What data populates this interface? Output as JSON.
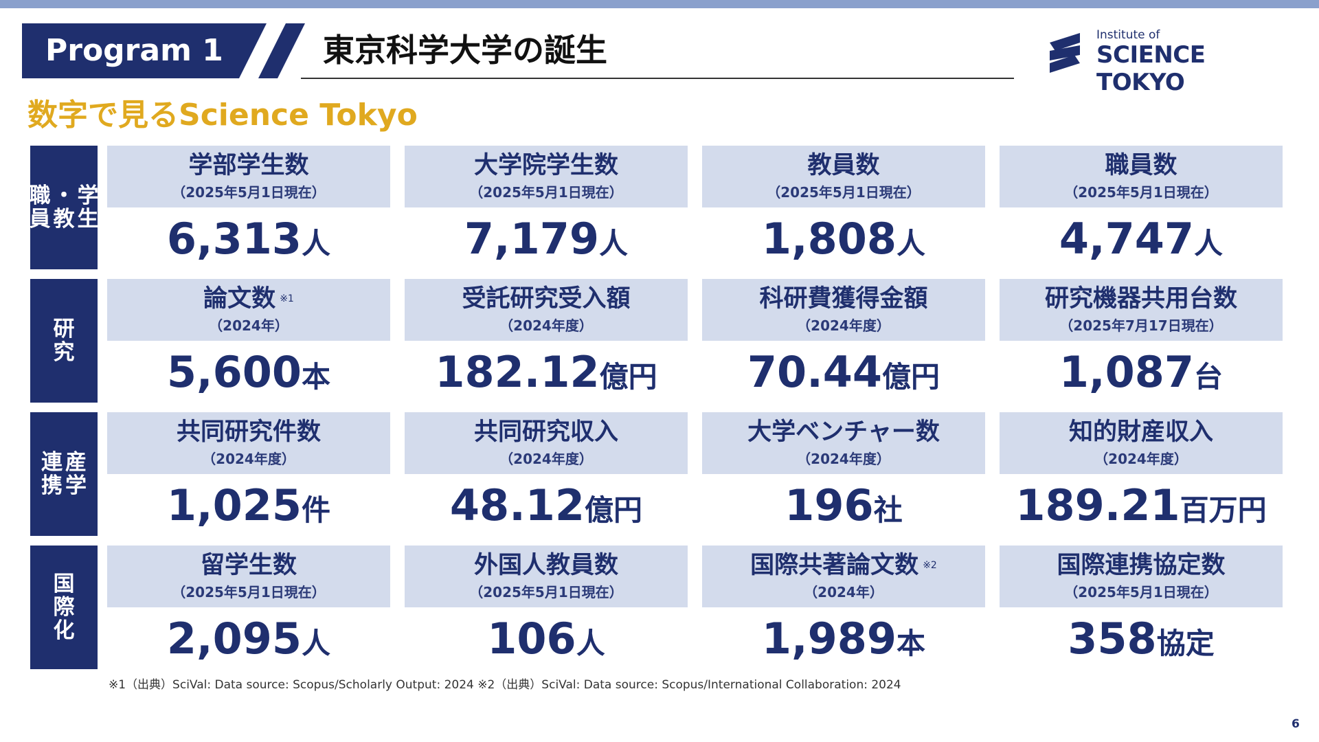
{
  "header": {
    "program_label": "Program 1",
    "title": "東京科学大学の誕生",
    "logo_small": "Institute of",
    "logo_big": "SCIENCE TOKYO"
  },
  "subtitle": "数字で見るScience Tokyo",
  "colors": {
    "navy": "#1f2f6e",
    "gold": "#e0a91f",
    "cell_header_bg": "#d3dbec",
    "top_stripe": "#8aa0cc"
  },
  "rows": [
    {
      "category": "学生・教職員",
      "cells": [
        {
          "title": "学部学生数",
          "date": "（2025年5月1日現在）",
          "number": "6,313",
          "unit": "人"
        },
        {
          "title": "大学院学生数",
          "date": "（2025年5月1日現在）",
          "number": "7,179",
          "unit": "人"
        },
        {
          "title": "教員数",
          "date": "（2025年5月1日現在）",
          "number": "1,808",
          "unit": "人"
        },
        {
          "title": "職員数",
          "date": "（2025年5月1日現在）",
          "number": "4,747",
          "unit": "人"
        }
      ]
    },
    {
      "category": "研究",
      "cells": [
        {
          "title": "論文数",
          "note": "※1",
          "date": "（2024年）",
          "number": "5,600",
          "unit": "本"
        },
        {
          "title": "受託研究受入額",
          "date": "（2024年度）",
          "number": "182.12",
          "unit": "億円"
        },
        {
          "title": "科研費獲得金額",
          "date": "（2024年度）",
          "number": "70.44",
          "unit": "億円"
        },
        {
          "title": "研究機器共用台数",
          "date": "（2025年7月17日現在）",
          "number": "1,087",
          "unit": "台"
        }
      ]
    },
    {
      "category": "産学連携",
      "cells": [
        {
          "title": "共同研究件数",
          "date": "（2024年度）",
          "number": "1,025",
          "unit": "件"
        },
        {
          "title": "共同研究収入",
          "date": "（2024年度）",
          "number": "48.12",
          "unit": "億円"
        },
        {
          "title": "大学ベンチャー数",
          "date": "（2024年度）",
          "number": "196",
          "unit": "社"
        },
        {
          "title": "知的財産収入",
          "date": "（2024年度）",
          "number": "189.21",
          "unit": "百万円"
        }
      ]
    },
    {
      "category": "国際化",
      "cells": [
        {
          "title": "留学生数",
          "date": "（2025年5月1日現在）",
          "number": "2,095",
          "unit": "人"
        },
        {
          "title": "外国人教員数",
          "date": "（2025年5月1日現在）",
          "number": "106",
          "unit": "人"
        },
        {
          "title": "国際共著論文数",
          "note": "※2",
          "date": "（2024年）",
          "number": "1,989",
          "unit": "本"
        },
        {
          "title": "国際連携協定数",
          "date": "（2025年5月1日現在）",
          "number": "358",
          "unit": "協定"
        }
      ]
    }
  ],
  "footnote": "※1（出典）SciVal: Data source: Scopus/Scholarly Output: 2024 ※2（出典）SciVal: Data source: Scopus/International Collaboration: 2024",
  "page_number": "6"
}
